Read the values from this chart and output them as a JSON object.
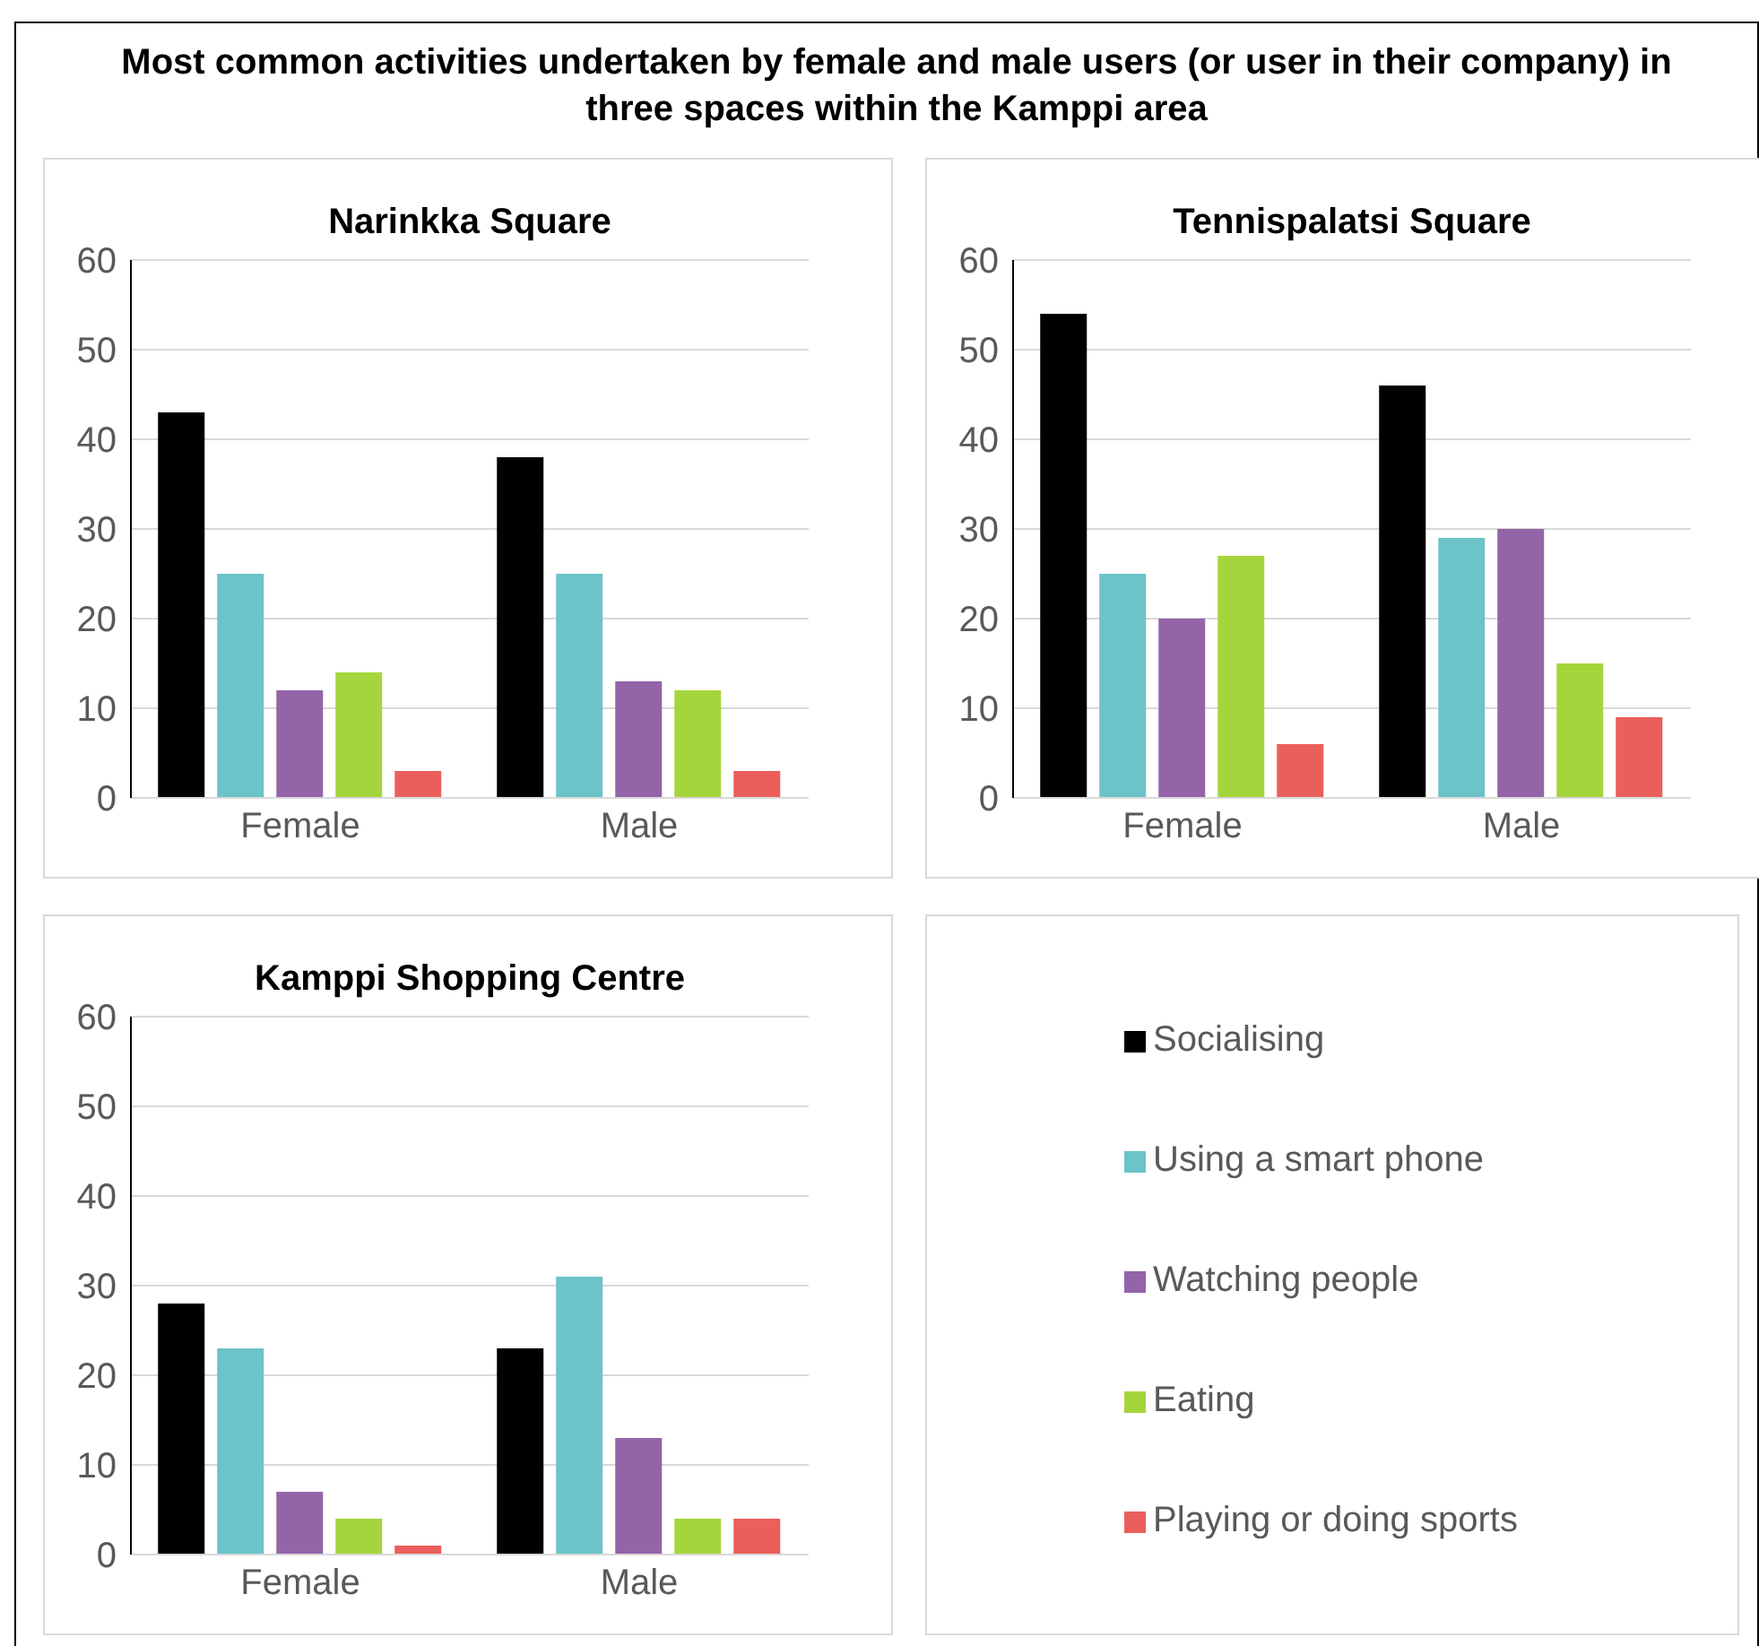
{
  "chart_data": [
    {
      "type": "bar",
      "title": "Most common activities undertaken by female and male users (or user in their company) in three spaces within the Kamppi area",
      "subtitle": "Narinkka Square",
      "categories": [
        "Female",
        "Male"
      ],
      "ylim": [
        0,
        60
      ],
      "yticks": [
        0,
        10,
        20,
        30,
        40,
        50,
        60
      ],
      "grid": "y",
      "legend": "bottom right",
      "series": [
        {
          "name": "Socialising",
          "color": "#000000",
          "values": [
            43,
            38
          ]
        },
        {
          "name": "Using a smart phone",
          "color": "#6cc3c8",
          "values": [
            25,
            25
          ]
        },
        {
          "name": "Watching people",
          "color": "#9464a8",
          "values": [
            12,
            13
          ]
        },
        {
          "name": "Eating",
          "color": "#a5d53c",
          "values": [
            14,
            12
          ]
        },
        {
          "name": "Playing or doing sports",
          "color": "#ea5f5b",
          "values": [
            3,
            3
          ]
        }
      ]
    },
    {
      "type": "bar",
      "subtitle": "Tennispalatsi Square",
      "categories": [
        "Female",
        "Male"
      ],
      "ylim": [
        0,
        60
      ],
      "yticks": [
        0,
        10,
        20,
        30,
        40,
        50,
        60
      ],
      "grid": "y",
      "series": [
        {
          "color": "#000000",
          "values": [
            54,
            46
          ]
        },
        {
          "color": "#6cc3c8",
          "values": [
            25,
            29
          ]
        },
        {
          "color": "#9464a8",
          "values": [
            20,
            30
          ]
        },
        {
          "color": "#a5d53c",
          "values": [
            27,
            15
          ]
        },
        {
          "color": "#ea5f5b",
          "values": [
            6,
            9
          ]
        }
      ]
    },
    {
      "type": "bar",
      "subtitle": "Kamppi Shopping Centre",
      "categories": [
        "Female",
        "Male"
      ],
      "ylim": [
        0,
        60
      ],
      "yticks": [
        0,
        10,
        20,
        30,
        40,
        50,
        60
      ],
      "grid": "y",
      "series": [
        {
          "color": "#000000",
          "values": [
            28,
            23
          ]
        },
        {
          "color": "#6cc3c8",
          "values": [
            23,
            31
          ]
        },
        {
          "color": "#9464a8",
          "values": [
            7,
            13
          ]
        },
        {
          "color": "#a5d53c",
          "values": [
            4,
            4
          ]
        },
        {
          "color": "#ea5f5b",
          "values": [
            1,
            4
          ]
        }
      ]
    }
  ]
}
